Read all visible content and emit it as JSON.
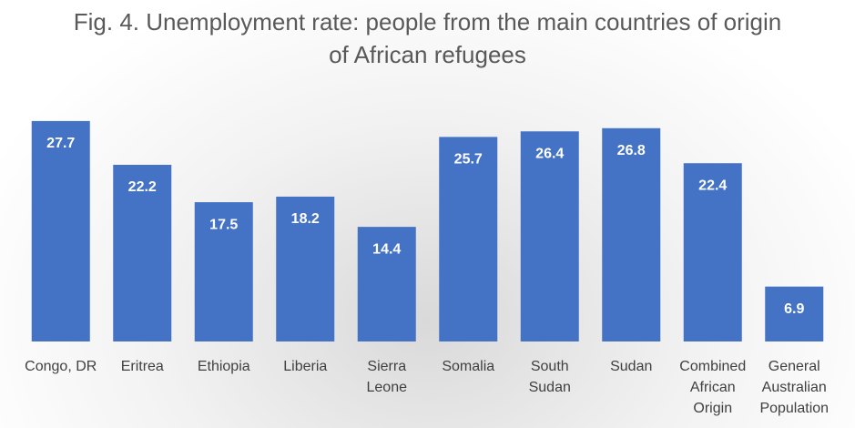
{
  "chart_data": {
    "type": "bar",
    "title": "Fig. 4. Unemployment rate: people from the main countries of origin of African refugees",
    "categories": [
      "Congo, DR",
      "Eritrea",
      "Ethiopia",
      "Liberia",
      "Sierra Leone",
      "Somalia",
      "South Sudan",
      "Sudan",
      "Combined African Origin",
      "General Australian Population"
    ],
    "values": [
      27.7,
      22.2,
      17.5,
      18.2,
      14.4,
      25.7,
      26.4,
      26.8,
      22.4,
      6.9
    ],
    "color": "#4472c4"
  }
}
